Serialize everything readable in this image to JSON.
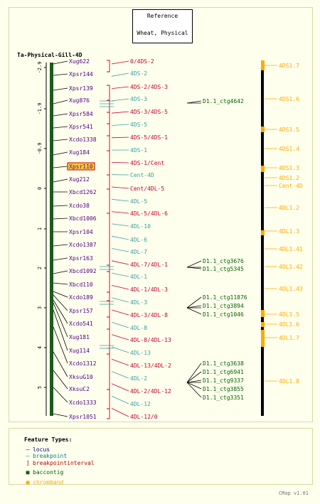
{
  "reference": {
    "title": "Reference",
    "map": "Wheat, Physical"
  },
  "map_title": "Ta-Physical-Gill-4D",
  "scale": [
    "-2.9",
    "-1.9",
    "-0.9",
    "0",
    "1",
    "2",
    "3",
    "4",
    "5"
  ],
  "loci": [
    "Xug622",
    "Xpsr144",
    "Xpsr139",
    "Xug876",
    "Xpsr584",
    "Xpsr541",
    "Xcdo1338",
    "Xug184",
    "Xpsr110",
    "Xug212",
    "Xbcd1262",
    "Xcdo38",
    "Xbcd1006",
    "Xpsr104",
    "Xcdo1387",
    "Xpsr163",
    "Xbcd1092",
    "Xbcd110",
    "Xcdo189",
    "Xpsr157",
    "Xcdo541",
    "Xug181",
    "Xug114",
    "Xcdo1312",
    "XksuG10",
    "XksuC2",
    "Xcdo1333",
    "Xpsr1051"
  ],
  "highlighted_locus": "Xpsr110",
  "breakpoints": [
    {
      "label": "0/4DS-2",
      "type": "interval"
    },
    {
      "label": "4DS-2",
      "type": "point"
    },
    {
      "label": "4DS-2/4DS-3",
      "type": "interval"
    },
    {
      "label": "4DS-3",
      "type": "point"
    },
    {
      "label": "4DS-3/4DS-5",
      "type": "interval"
    },
    {
      "label": "4DS-5",
      "type": "point"
    },
    {
      "label": "4DS-5/4DS-1",
      "type": "interval"
    },
    {
      "label": "4DS-1",
      "type": "point"
    },
    {
      "label": "4DS-1/Cent",
      "type": "interval"
    },
    {
      "label": "Cent-4D",
      "type": "point"
    },
    {
      "label": "Cent/4DL-5",
      "type": "interval"
    },
    {
      "label": "4DL-5",
      "type": "point"
    },
    {
      "label": "4DL-5/4DL-6",
      "type": "interval"
    },
    {
      "label": "4DL-10",
      "type": "point"
    },
    {
      "label": "4DL-6",
      "type": "point"
    },
    {
      "label": "4DL-7",
      "type": "point"
    },
    {
      "label": "4DL-7/4DL-1",
      "type": "interval"
    },
    {
      "label": "4DL-1",
      "type": "point"
    },
    {
      "label": "4DL-1/4DL-3",
      "type": "interval"
    },
    {
      "label": "4DL-3",
      "type": "point"
    },
    {
      "label": "4DL-3/4DL-8",
      "type": "interval"
    },
    {
      "label": "4DL-8",
      "type": "point"
    },
    {
      "label": "4DL-8/4DL-13",
      "type": "interval"
    },
    {
      "label": "4DL-13",
      "type": "point"
    },
    {
      "label": "4DL-13/4DL-2",
      "type": "interval"
    },
    {
      "label": "4DL-2",
      "type": "point"
    },
    {
      "label": "4DL-2/4DL-12",
      "type": "interval"
    },
    {
      "label": "4DL-12",
      "type": "point"
    },
    {
      "label": "4DL-12/0",
      "type": "interval"
    }
  ],
  "contigs": [
    "D1.1_ctg4642",
    "D1.1_ctg3676",
    "D1.1_ctg5345",
    "D1.1_ctg11876",
    "D1.1_ctg3894",
    "D1.1_ctg1046",
    "D1.1_ctg3638",
    "D1.1_ctg6941",
    "D1.1_ctg9337",
    "D1.1_ctg3855",
    "D1.1_ctg3351"
  ],
  "chrombands": [
    "4DS1.7",
    "4DS1.6",
    "4DS1.5",
    "4DS1.4",
    "4DS1.3",
    "4DS1.2",
    "Cent-4D",
    "4DL1.2",
    "4DL1.3",
    "4DL1.41",
    "4DL1.42",
    "4DL1.43",
    "4DL1.5",
    "4DL1.6",
    "4DL1.7",
    "4DL1.8"
  ],
  "legend": {
    "title": "Feature Types:",
    "items": [
      {
        "label": "locus",
        "color": "#000080"
      },
      {
        "label": "breakpoint",
        "color": "#008080"
      },
      {
        "label": "breakpointinterval",
        "color": "#c00000"
      },
      {
        "label": "baccontig",
        "color": "#006000"
      },
      {
        "label": "chromband",
        "color": "#ffaa00"
      }
    ]
  },
  "footer": "CMap v1.01",
  "colors": {
    "locus": "#4b0082",
    "breakpoint": "#3aa0a0",
    "interval": "#c00030",
    "contig": "#006400",
    "band": "#ffaa00",
    "highlight": "#ffcc33"
  }
}
